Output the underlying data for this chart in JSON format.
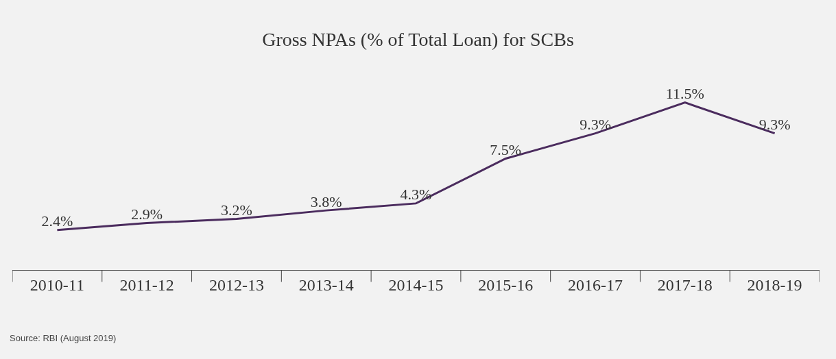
{
  "chart_data": {
    "type": "line",
    "title": "Gross NPAs (% of Total Loan) for SCBs",
    "categories": [
      "2010-11",
      "2011-12",
      "2012-13",
      "2013-14",
      "2014-15",
      "2015-16",
      "2016-17",
      "2017-18",
      "2018-19"
    ],
    "values": [
      2.4,
      2.9,
      3.2,
      3.8,
      4.3,
      7.5,
      9.3,
      11.5,
      9.3
    ],
    "value_labels": [
      "2.4%",
      "2.9%",
      "3.2%",
      "3.8%",
      "4.3%",
      "7.5%",
      "9.3%",
      "11.5%",
      "9.3%"
    ],
    "color": "#4b2c5e",
    "marker": "none",
    "line_style": "solid",
    "grid": false,
    "legend": false,
    "annotations": [
      "Source: RBI (August 2019)"
    ]
  }
}
